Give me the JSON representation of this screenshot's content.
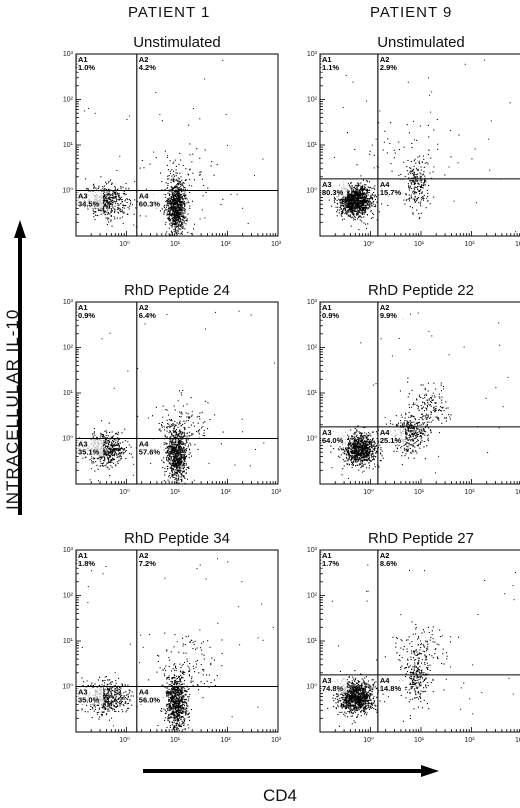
{
  "column_headers": [
    "PATIENT 1",
    "PATIENT 9"
  ],
  "y_axis_label": "INTRACELLULAR IL-10",
  "x_axis_label": "CD4",
  "chart_data": [
    {
      "type": "scatter",
      "title": "Unstimulated",
      "patient": "PATIENT 1",
      "xlabel": "CD4",
      "ylabel": "INTRACELLULAR IL-10",
      "x_scale": "log",
      "y_scale": "log",
      "xlim": [
        0.1,
        1000
      ],
      "ylim": [
        0.1,
        1000
      ],
      "x_ticks": [
        "10⁰",
        "10¹",
        "10²",
        "10³"
      ],
      "y_ticks": [
        "10³",
        "10²",
        "10¹",
        "10⁰"
      ],
      "gate": {
        "x": 1.6,
        "y": 1.0
      },
      "quadrants": [
        {
          "id": "A1",
          "percent": "1.0%"
        },
        {
          "id": "A2",
          "percent": "4.2%"
        },
        {
          "id": "A3",
          "percent": "34.5%"
        },
        {
          "id": "A4",
          "percent": "60.3%"
        }
      ],
      "populations": [
        {
          "center": [
            0.4,
            0.6
          ],
          "spread": [
            0.22,
            0.18
          ],
          "fraction": 0.34
        },
        {
          "center": [
            9.5,
            0.45
          ],
          "spread": [
            0.1,
            0.28
          ],
          "fraction": 0.6
        },
        {
          "center": [
            12,
            2.5
          ],
          "spread": [
            0.35,
            0.35
          ],
          "fraction": 0.06
        }
      ]
    },
    {
      "type": "scatter",
      "title": "Unstimulated",
      "patient": "PATIENT 9",
      "xlabel": "CD4",
      "ylabel": "INTRACELLULAR IL-10",
      "x_scale": "log",
      "y_scale": "log",
      "xlim": [
        0.1,
        1000
      ],
      "ylim": [
        0.1,
        1000
      ],
      "x_ticks": [
        "10⁰",
        "10¹",
        "10²",
        "10³"
      ],
      "y_ticks": [
        "10³",
        "10²",
        "10¹",
        "10⁰"
      ],
      "gate": {
        "x": 1.4,
        "y": 1.8
      },
      "quadrants": [
        {
          "id": "A1",
          "percent": "1.1%"
        },
        {
          "id": "A2",
          "percent": "2.9%"
        },
        {
          "id": "A3",
          "percent": "80.3%"
        },
        {
          "id": "A4",
          "percent": "15.7%"
        }
      ],
      "populations": [
        {
          "center": [
            0.5,
            0.6
          ],
          "spread": [
            0.17,
            0.17
          ],
          "fraction": 0.8
        },
        {
          "center": [
            8,
            1.3
          ],
          "spread": [
            0.12,
            0.3
          ],
          "fraction": 0.16
        },
        {
          "center": [
            4,
            8
          ],
          "spread": [
            0.5,
            0.4
          ],
          "fraction": 0.04
        }
      ]
    },
    {
      "type": "scatter",
      "title": "RhD Peptide 24",
      "patient": "PATIENT 1",
      "xlabel": "CD4",
      "ylabel": "INTRACELLULAR IL-10",
      "x_scale": "log",
      "y_scale": "log",
      "xlim": [
        0.1,
        1000
      ],
      "ylim": [
        0.1,
        1000
      ],
      "x_ticks": [
        "10⁰",
        "10¹",
        "10²",
        "10³"
      ],
      "y_ticks": [
        "10³",
        "10²",
        "10¹",
        "10⁰"
      ],
      "gate": {
        "x": 1.6,
        "y": 1.0
      },
      "quadrants": [
        {
          "id": "A1",
          "percent": "0.9%"
        },
        {
          "id": "A2",
          "percent": "6.4%"
        },
        {
          "id": "A3",
          "percent": "35.1%"
        },
        {
          "id": "A4",
          "percent": "57.6%"
        }
      ],
      "populations": [
        {
          "center": [
            0.4,
            0.6
          ],
          "spread": [
            0.2,
            0.18
          ],
          "fraction": 0.35
        },
        {
          "center": [
            9.5,
            0.45
          ],
          "spread": [
            0.11,
            0.3
          ],
          "fraction": 0.57
        },
        {
          "center": [
            14,
            2.2
          ],
          "spread": [
            0.3,
            0.3
          ],
          "fraction": 0.08
        }
      ]
    },
    {
      "type": "scatter",
      "title": "RhD Peptide 22",
      "patient": "PATIENT 9",
      "xlabel": "CD4",
      "ylabel": "INTRACELLULAR IL-10",
      "x_scale": "log",
      "y_scale": "log",
      "xlim": [
        0.1,
        1000
      ],
      "ylim": [
        0.1,
        1000
      ],
      "x_ticks": [
        "10⁰",
        "10¹",
        "10²",
        "10³"
      ],
      "y_ticks": [
        "10³",
        "10²",
        "10¹",
        "10⁰"
      ],
      "gate": {
        "x": 1.4,
        "y": 1.8
      },
      "quadrants": [
        {
          "id": "A1",
          "percent": "0.9%"
        },
        {
          "id": "A2",
          "percent": "9.9%"
        },
        {
          "id": "A3",
          "percent": "64.0%"
        },
        {
          "id": "A4",
          "percent": "25.1%"
        }
      ],
      "populations": [
        {
          "center": [
            0.6,
            0.6
          ],
          "spread": [
            0.18,
            0.18
          ],
          "fraction": 0.64
        },
        {
          "center": [
            6,
            1.3
          ],
          "spread": [
            0.18,
            0.22
          ],
          "fraction": 0.25
        },
        {
          "center": [
            14,
            5
          ],
          "spread": [
            0.2,
            0.25
          ],
          "fraction": 0.11
        }
      ]
    },
    {
      "type": "scatter",
      "title": "RhD Peptide 34",
      "patient": "PATIENT 1",
      "xlabel": "CD4",
      "ylabel": "INTRACELLULAR IL-10",
      "x_scale": "log",
      "y_scale": "log",
      "xlim": [
        0.1,
        1000
      ],
      "ylim": [
        0.1,
        1000
      ],
      "x_ticks": [
        "10⁰",
        "10¹",
        "10²",
        "10³"
      ],
      "y_ticks": [
        "10³",
        "10²",
        "10¹",
        "10⁰"
      ],
      "gate": {
        "x": 1.6,
        "y": 1.0
      },
      "quadrants": [
        {
          "id": "A1",
          "percent": "1.8%"
        },
        {
          "id": "A2",
          "percent": "7.2%"
        },
        {
          "id": "A3",
          "percent": "35.0%"
        },
        {
          "id": "A4",
          "percent": "56.0%"
        }
      ],
      "populations": [
        {
          "center": [
            0.4,
            0.6
          ],
          "spread": [
            0.22,
            0.18
          ],
          "fraction": 0.35
        },
        {
          "center": [
            9.5,
            0.45
          ],
          "spread": [
            0.11,
            0.3
          ],
          "fraction": 0.56
        },
        {
          "center": [
            16,
            3
          ],
          "spread": [
            0.3,
            0.35
          ],
          "fraction": 0.09
        }
      ]
    },
    {
      "type": "scatter",
      "title": "RhD Peptide 27",
      "patient": "PATIENT 9",
      "xlabel": "CD4",
      "ylabel": "INTRACELLULAR IL-10",
      "x_scale": "log",
      "y_scale": "log",
      "xlim": [
        0.1,
        1000
      ],
      "ylim": [
        0.1,
        1000
      ],
      "x_ticks": [
        "10⁰",
        "10¹",
        "10²",
        "10³"
      ],
      "y_ticks": [
        "10³",
        "10²",
        "10¹",
        "10⁰"
      ],
      "gate": {
        "x": 1.4,
        "y": 1.8
      },
      "quadrants": [
        {
          "id": "A1",
          "percent": "1.7%"
        },
        {
          "id": "A2",
          "percent": "8.6%"
        },
        {
          "id": "A3",
          "percent": "74.8%"
        },
        {
          "id": "A4",
          "percent": "14.8%"
        }
      ],
      "populations": [
        {
          "center": [
            0.5,
            0.6
          ],
          "spread": [
            0.18,
            0.18
          ],
          "fraction": 0.75
        },
        {
          "center": [
            8,
            1.3
          ],
          "spread": [
            0.12,
            0.28
          ],
          "fraction": 0.15
        },
        {
          "center": [
            10,
            6
          ],
          "spread": [
            0.3,
            0.3
          ],
          "fraction": 0.1
        }
      ]
    }
  ]
}
